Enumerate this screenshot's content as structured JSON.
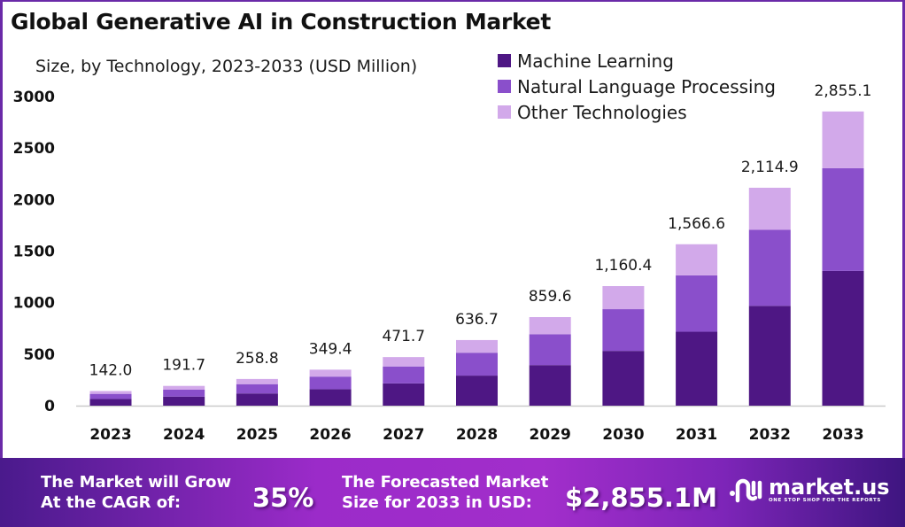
{
  "title": "Global Generative AI in Construction Market",
  "subtitle": "Size, by Technology, 2023-2033 (USD Million)",
  "colors": {
    "machine_learning": "#4e1784",
    "natural_language_processing": "#8a4fcb",
    "other_technologies": "#d2a9ea",
    "frame": "#6a2aa8"
  },
  "chart_data": {
    "type": "bar",
    "stacked": true,
    "title": "Global Generative AI in Construction Market",
    "subtitle": "Size, by Technology, 2023-2033 (USD Million)",
    "xlabel": "",
    "ylabel": "",
    "ylim": [
      0,
      3000
    ],
    "yticks": [
      0,
      500,
      1000,
      1500,
      2000,
      2500,
      3000
    ],
    "grid": false,
    "legend_position": "top-right",
    "categories": [
      "2023",
      "2024",
      "2025",
      "2026",
      "2027",
      "2028",
      "2029",
      "2030",
      "2031",
      "2032",
      "2033"
    ],
    "totals": [
      142.0,
      191.7,
      258.8,
      349.4,
      471.7,
      636.7,
      859.6,
      1160.4,
      1566.6,
      2114.9,
      2855.1
    ],
    "total_labels": [
      "142.0",
      "191.7",
      "258.8",
      "349.4",
      "471.7",
      "636.7",
      "859.6",
      "1,160.4",
      "1,566.6",
      "2,114.9",
      "2,855.1"
    ],
    "series": [
      {
        "name": "Machine Learning",
        "values": [
          65.0,
          87.8,
          118.5,
          160.0,
          216.0,
          291.6,
          393.7,
          531.5,
          717.5,
          968.6,
          1307.6
        ]
      },
      {
        "name": "Natural Language Processing",
        "values": [
          49.6,
          66.9,
          90.3,
          121.9,
          164.6,
          222.2,
          300.0,
          405.0,
          546.7,
          738.1,
          996.4
        ]
      },
      {
        "name": "Other Technologies",
        "values": [
          27.4,
          37.0,
          50.0,
          67.5,
          91.1,
          122.9,
          165.9,
          223.9,
          302.4,
          408.2,
          551.1
        ]
      }
    ]
  },
  "banner": {
    "cagr_text_line1": "The Market will Grow",
    "cagr_text_line2": "At the CAGR of:",
    "cagr_value": "35%",
    "forecast_text_line1": "The Forecasted Market",
    "forecast_text_line2": "Size for 2033 in USD:",
    "forecast_value": "$2,855.1M",
    "logo_name": "market.us",
    "logo_tagline": "ONE STOP SHOP FOR THE REPORTS"
  }
}
